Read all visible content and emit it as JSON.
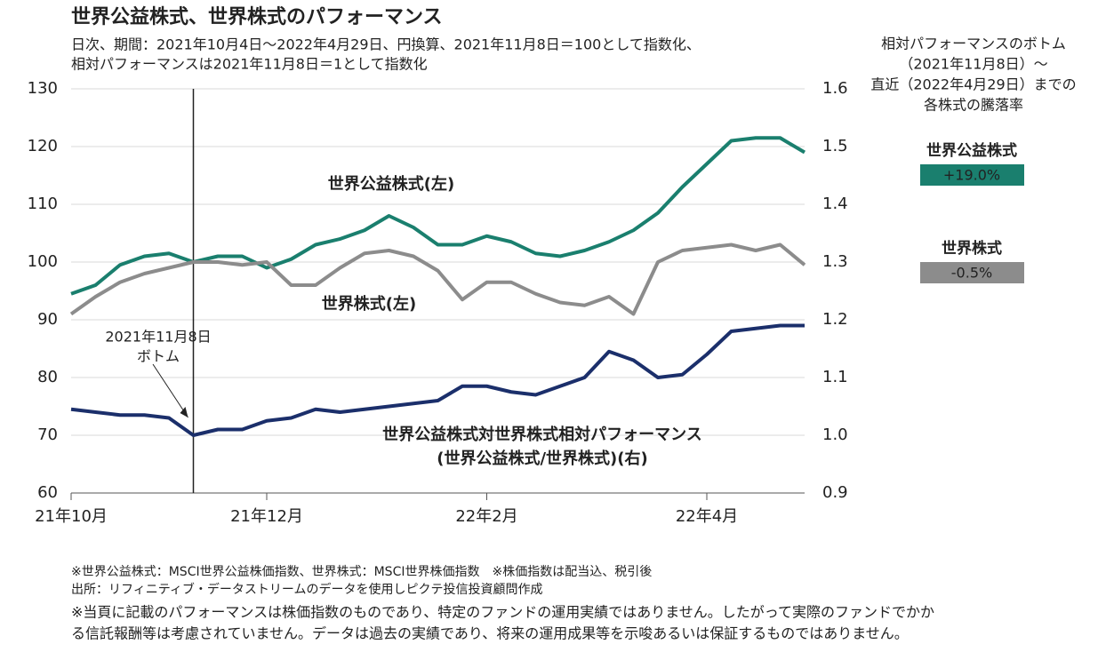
{
  "chart_data": {
    "type": "line",
    "title": "世界公益株式、世界株式のパフォーマンス",
    "subtitle": [
      "日次、期間：2021年10月4日～2022年4月29日、円換算、2021年11月8日＝100として指数化、",
      "相対パフォーマンスは2021年11月8日＝1として指数化"
    ],
    "categories": [
      "21年10月",
      null,
      null,
      null,
      null,
      null,
      null,
      null,
      "21年12月",
      null,
      null,
      null,
      null,
      null,
      null,
      null,
      null,
      "22年2月",
      null,
      null,
      null,
      null,
      null,
      null,
      null,
      null,
      "22年4月",
      null,
      null,
      null,
      null
    ],
    "ylim": [
      60,
      130
    ],
    "yticks": [
      60,
      70,
      80,
      90,
      100,
      110,
      120,
      130
    ],
    "y2lim": [
      0.9,
      1.6
    ],
    "y2ticks": [
      0.9,
      {
        "value": 1,
        "label": "1.0"
      },
      1.1,
      1.2,
      1.3,
      1.4,
      1.5,
      1.6
    ],
    "grid": true,
    "series": [
      {
        "name": "世界公益株式(左)",
        "color": "#1a7f6e",
        "values": [
          94.5,
          96,
          99.5,
          101,
          101.5,
          100,
          101,
          101,
          99,
          100.5,
          103,
          104,
          105.5,
          108,
          106,
          103,
          103,
          104.5,
          103.5,
          101.5,
          101,
          102,
          103.5,
          105.5,
          108.5,
          113,
          117,
          121,
          121.5,
          121.5,
          119
        ]
      },
      {
        "name": "世界株式(左)",
        "color": "#8c8c8c",
        "values": [
          91,
          94,
          96.5,
          98,
          99,
          100,
          100,
          99.5,
          100,
          96,
          96,
          99,
          101.5,
          102,
          101,
          98.5,
          93.5,
          96.5,
          96.5,
          94.5,
          93,
          92.5,
          94,
          91,
          100,
          102,
          102.5,
          103,
          102,
          103,
          99.5
        ]
      },
      {
        "name": "世界公益株式対世界株式相対パフォーマンス\n(世界公益株式/世界株式)(右)",
        "color": "#1b2f6b",
        "axis": "y2",
        "values": [
          1.045,
          1.04,
          1.035,
          1.035,
          1.03,
          1.0,
          1.01,
          1.01,
          1.025,
          1.03,
          1.045,
          1.04,
          1.045,
          1.05,
          1.055,
          1.06,
          1.085,
          1.085,
          1.075,
          1.07,
          1.085,
          1.1,
          1.145,
          1.13,
          1.1,
          1.105,
          1.14,
          1.18,
          1.185,
          1.19,
          1.19
        ]
      }
    ],
    "annotation": [
      "2021年11月8日",
      "ボトム"
    ],
    "panel": {
      "title": [
        "相対パフォーマンスのボトム",
        "（2021年11月8日）～",
        "直近（2022年4月29日）までの",
        "各株式の騰落率"
      ],
      "items": [
        {
          "name": "世界公益株式",
          "label": "+19.0%",
          "color": "#1a7f6e"
        },
        {
          "name": "世界株式",
          "label": "-0.5%",
          "color": "#8c8c8c"
        }
      ]
    },
    "notes": [
      "※世界公益株式：MSCI世界公益株価指数、世界株式：MSCI世界株価指数　※株価指数は配当込、税引後",
      "出所：リフィニティブ・データストリームのデータを使用しピクテ投信投資顧問作成"
    ],
    "disclaimer": [
      "※当頁に記載のパフォーマンスは株価指数のものであり、特定のファンドの運用実績ではありません。したがって実際のファンドでかか",
      "る信託報酬等は考慮されていません。データは過去の実績であり、将来の運用成果等を示唆あるいは保証するものではありません。"
    ]
  }
}
